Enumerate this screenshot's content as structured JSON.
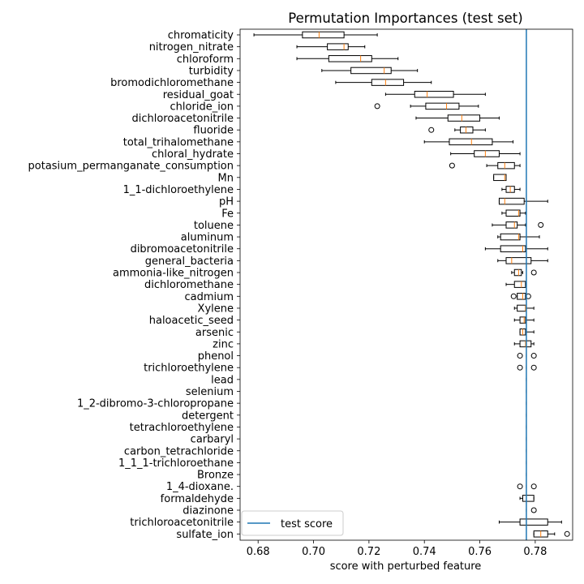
{
  "chart_data": {
    "type": "boxplot",
    "title": "Permutation Importances (test set)",
    "xlabel": "score with perturbed feature",
    "ylabel": "",
    "xlim": [
      0.6735,
      0.7935
    ],
    "xticks": [
      "0.68",
      "0.70",
      "0.72",
      "0.74",
      "0.76",
      "0.78"
    ],
    "xtick_values": [
      0.68,
      0.7,
      0.72,
      0.74,
      0.76,
      0.78
    ],
    "reference_line": {
      "name": "test score",
      "value": 0.7768,
      "color": "#1f77b4"
    },
    "legend": {
      "entries": [
        "test score"
      ],
      "placement": "lower-left"
    },
    "grid": false,
    "colors": {
      "box": "#000000",
      "median": "#ff7f0e",
      "reference": "#1f77b4"
    },
    "features": [
      {
        "name": "chromaticity",
        "whisker_low": 0.6785,
        "q1": 0.696,
        "median": 0.702,
        "q3": 0.711,
        "whisker_high": 0.723,
        "outliers": []
      },
      {
        "name": "nitrogen_nitrate",
        "whisker_low": 0.694,
        "q1": 0.705,
        "median": 0.711,
        "q3": 0.7125,
        "whisker_high": 0.7185,
        "outliers": []
      },
      {
        "name": "chloroform",
        "whisker_low": 0.694,
        "q1": 0.7055,
        "median": 0.717,
        "q3": 0.721,
        "whisker_high": 0.7305,
        "outliers": []
      },
      {
        "name": "turbidity",
        "whisker_low": 0.703,
        "q1": 0.7135,
        "median": 0.7255,
        "q3": 0.728,
        "whisker_high": 0.7375,
        "outliers": []
      },
      {
        "name": "bromodichloromethane",
        "whisker_low": 0.708,
        "q1": 0.721,
        "median": 0.726,
        "q3": 0.7325,
        "whisker_high": 0.7425,
        "outliers": []
      },
      {
        "name": "residual_goat",
        "whisker_low": 0.726,
        "q1": 0.7365,
        "median": 0.741,
        "q3": 0.7505,
        "whisker_high": 0.762,
        "outliers": []
      },
      {
        "name": "chloride_ion",
        "whisker_low": 0.735,
        "q1": 0.7405,
        "median": 0.748,
        "q3": 0.7525,
        "whisker_high": 0.7595,
        "outliers": [
          0.723
        ]
      },
      {
        "name": "dichloroacetonitrile",
        "whisker_low": 0.737,
        "q1": 0.7485,
        "median": 0.7535,
        "q3": 0.76,
        "whisker_high": 0.767,
        "outliers": []
      },
      {
        "name": "fluoride",
        "whisker_low": 0.751,
        "q1": 0.753,
        "median": 0.755,
        "q3": 0.7575,
        "whisker_high": 0.762,
        "outliers": [
          0.7425
        ]
      },
      {
        "name": "total_trihalomethane",
        "whisker_low": 0.74,
        "q1": 0.749,
        "median": 0.757,
        "q3": 0.7645,
        "whisker_high": 0.772,
        "outliers": []
      },
      {
        "name": "chloral_hydrate",
        "whisker_low": 0.7495,
        "q1": 0.758,
        "median": 0.762,
        "q3": 0.767,
        "whisker_high": 0.7745,
        "outliers": []
      },
      {
        "name": "potasium_permanganate_consumption",
        "whisker_low": 0.7625,
        "q1": 0.7665,
        "median": 0.769,
        "q3": 0.7725,
        "whisker_high": 0.7745,
        "outliers": [
          0.75
        ]
      },
      {
        "name": "Mn",
        "whisker_low": 0.765,
        "q1": 0.765,
        "median": 0.769,
        "q3": 0.7695,
        "whisker_high": 0.7695,
        "outliers": []
      },
      {
        "name": "1_1-dichloroethylene",
        "whisker_low": 0.768,
        "q1": 0.7695,
        "median": 0.771,
        "q3": 0.7725,
        "whisker_high": 0.7745,
        "outliers": []
      },
      {
        "name": "pH",
        "whisker_low": 0.767,
        "q1": 0.767,
        "median": 0.769,
        "q3": 0.776,
        "whisker_high": 0.7845,
        "outliers": []
      },
      {
        "name": "Fe",
        "whisker_low": 0.768,
        "q1": 0.7695,
        "median": 0.774,
        "q3": 0.7745,
        "whisker_high": 0.7765,
        "outliers": []
      },
      {
        "name": "toluene",
        "whisker_low": 0.7645,
        "q1": 0.7695,
        "median": 0.7725,
        "q3": 0.7735,
        "whisker_high": 0.7765,
        "outliers": [
          0.782
        ]
      },
      {
        "name": "aluminum",
        "whisker_low": 0.7665,
        "q1": 0.7675,
        "median": 0.774,
        "q3": 0.7745,
        "whisker_high": 0.7815,
        "outliers": []
      },
      {
        "name": "dibromoacetonitrile",
        "whisker_low": 0.762,
        "q1": 0.7675,
        "median": 0.7755,
        "q3": 0.7765,
        "whisker_high": 0.7845,
        "outliers": []
      },
      {
        "name": "general_bacteria",
        "whisker_low": 0.7665,
        "q1": 0.7695,
        "median": 0.7715,
        "q3": 0.7785,
        "whisker_high": 0.7845,
        "outliers": []
      },
      {
        "name": "ammonia-like_nitrogen",
        "whisker_low": 0.7715,
        "q1": 0.7725,
        "median": 0.774,
        "q3": 0.775,
        "whisker_high": 0.7755,
        "outliers": [
          0.7795
        ]
      },
      {
        "name": "dichloromethane",
        "whisker_low": 0.7695,
        "q1": 0.7725,
        "median": 0.775,
        "q3": 0.7765,
        "whisker_high": 0.7765,
        "outliers": []
      },
      {
        "name": "cadmium",
        "whisker_low": 0.7735,
        "q1": 0.7735,
        "median": 0.7755,
        "q3": 0.7765,
        "whisker_high": 0.7765,
        "outliers": [
          0.7722,
          0.7775
        ]
      },
      {
        "name": "Xylene",
        "whisker_low": 0.7725,
        "q1": 0.7735,
        "median": 0.7765,
        "q3": 0.7765,
        "whisker_high": 0.7795,
        "outliers": []
      },
      {
        "name": "haloacetic_seed",
        "whisker_low": 0.7725,
        "q1": 0.7745,
        "median": 0.776,
        "q3": 0.7765,
        "whisker_high": 0.7795,
        "outliers": []
      },
      {
        "name": "arsenic",
        "whisker_low": 0.7745,
        "q1": 0.7745,
        "median": 0.7755,
        "q3": 0.7765,
        "whisker_high": 0.7795,
        "outliers": []
      },
      {
        "name": "zinc",
        "whisker_low": 0.7725,
        "q1": 0.7745,
        "median": 0.7765,
        "q3": 0.7785,
        "whisker_high": 0.7795,
        "outliers": []
      },
      {
        "name": "phenol",
        "whisker_low": 0.7768,
        "q1": 0.7768,
        "median": 0.7768,
        "q3": 0.7768,
        "whisker_high": 0.7768,
        "outliers": [
          0.7745,
          0.7795
        ]
      },
      {
        "name": "trichloroethylene",
        "whisker_low": 0.7768,
        "q1": 0.7768,
        "median": 0.7768,
        "q3": 0.7768,
        "whisker_high": 0.7768,
        "outliers": [
          0.7745,
          0.7795
        ]
      },
      {
        "name": "lead",
        "whisker_low": 0.7768,
        "q1": 0.7768,
        "median": 0.7768,
        "q3": 0.7768,
        "whisker_high": 0.7768,
        "outliers": []
      },
      {
        "name": "selenium",
        "whisker_low": 0.7768,
        "q1": 0.7768,
        "median": 0.7768,
        "q3": 0.7768,
        "whisker_high": 0.7768,
        "outliers": []
      },
      {
        "name": "1_2-dibromo-3-chloropropane",
        "whisker_low": 0.7768,
        "q1": 0.7768,
        "median": 0.7768,
        "q3": 0.7768,
        "whisker_high": 0.7768,
        "outliers": []
      },
      {
        "name": "detergent",
        "whisker_low": 0.7768,
        "q1": 0.7768,
        "median": 0.7768,
        "q3": 0.7768,
        "whisker_high": 0.7768,
        "outliers": []
      },
      {
        "name": "tetrachloroethylene",
        "whisker_low": 0.7768,
        "q1": 0.7768,
        "median": 0.7768,
        "q3": 0.7768,
        "whisker_high": 0.7768,
        "outliers": []
      },
      {
        "name": "carbaryl",
        "whisker_low": 0.7768,
        "q1": 0.7768,
        "median": 0.7768,
        "q3": 0.7768,
        "whisker_high": 0.7768,
        "outliers": []
      },
      {
        "name": "carbon_tetrachloride",
        "whisker_low": 0.7768,
        "q1": 0.7768,
        "median": 0.7768,
        "q3": 0.7768,
        "whisker_high": 0.7768,
        "outliers": []
      },
      {
        "name": "1_1_1-trichloroethane",
        "whisker_low": 0.7768,
        "q1": 0.7768,
        "median": 0.7768,
        "q3": 0.7768,
        "whisker_high": 0.7768,
        "outliers": []
      },
      {
        "name": "Bronze",
        "whisker_low": 0.7768,
        "q1": 0.7768,
        "median": 0.7768,
        "q3": 0.7768,
        "whisker_high": 0.7768,
        "outliers": []
      },
      {
        "name": "1_4-dioxane.",
        "whisker_low": 0.7768,
        "q1": 0.7768,
        "median": 0.7768,
        "q3": 0.7768,
        "whisker_high": 0.7768,
        "outliers": [
          0.7745,
          0.7795
        ]
      },
      {
        "name": "formaldehyde",
        "whisker_low": 0.7745,
        "q1": 0.7755,
        "median": 0.7768,
        "q3": 0.7795,
        "whisker_high": 0.7795,
        "outliers": []
      },
      {
        "name": "diazinone",
        "whisker_low": 0.7768,
        "q1": 0.7768,
        "median": 0.7768,
        "q3": 0.7768,
        "whisker_high": 0.7768,
        "outliers": [
          0.7795
        ]
      },
      {
        "name": "trichloroacetonitrile",
        "whisker_low": 0.767,
        "q1": 0.7745,
        "median": 0.7768,
        "q3": 0.7845,
        "whisker_high": 0.7895,
        "outliers": []
      },
      {
        "name": "sulfate_ion",
        "whisker_low": 0.7795,
        "q1": 0.7795,
        "median": 0.782,
        "q3": 0.7845,
        "whisker_high": 0.787,
        "outliers": [
          0.7915
        ]
      }
    ]
  }
}
